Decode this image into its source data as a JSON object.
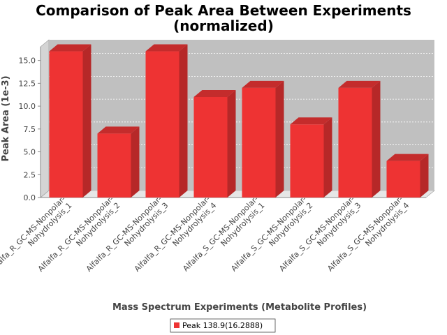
{
  "chart_data": {
    "type": "bar",
    "title_line1": "Comparison of Peak Area Between Experiments",
    "title_line2": "(normalized)",
    "xlabel": "Mass Spectrum Experiments (Metabolite Profiles)",
    "ylabel": "Peak Area (1e-3)",
    "ylim": [
      0,
      16.5
    ],
    "yticks": [
      "0.0",
      "2.5",
      "5.0",
      "7.5",
      "10.0",
      "12.5",
      "15.0"
    ],
    "ytick_values": [
      0,
      2.5,
      5.0,
      7.5,
      10.0,
      12.5,
      15.0
    ],
    "categories": [
      [
        "Alfalfa_R_GC-MS-Nonpolar-",
        "Nohydrolysis_1"
      ],
      [
        "Alfalfa_R_GC-MS-Nonpolar-",
        "Nohydrolysis_2"
      ],
      [
        "Alfalfa_R_GC-MS-Nonpolar-",
        "Nohydrolysis_3"
      ],
      [
        "Alfalfa_R_GC-MS-Nonpolar-",
        "Nohydrolysis_4"
      ],
      [
        "Alfalfa_S_GC-MS-Nonpolar-",
        "Nohydrolysis_1"
      ],
      [
        "Alfalfa_S_GC-MS-Nonpolar-",
        "Nohydrolysis_2"
      ],
      [
        "Alfalfa_S_GC-MS-Nonpolar-",
        "Nohydrolysis_3"
      ],
      [
        "Alfalfa_S_GC-MS-Nonpolar-",
        "Nohydrolysis_4"
      ]
    ],
    "series": [
      {
        "name": "Peak 138.9(16.2888)",
        "values": [
          16.0,
          7.0,
          16.0,
          11.0,
          12.0,
          8.0,
          12.0,
          4.0
        ]
      }
    ],
    "grid": true,
    "legend_position": "bottom-center",
    "colors": {
      "bar_front": "#ee3333",
      "bar_side": "#b62828",
      "bar_top": "#c42c2c",
      "plot_bg": "#c0c0c0",
      "plot_wall": "#d4d4d4",
      "grid": "#ffffff"
    }
  }
}
